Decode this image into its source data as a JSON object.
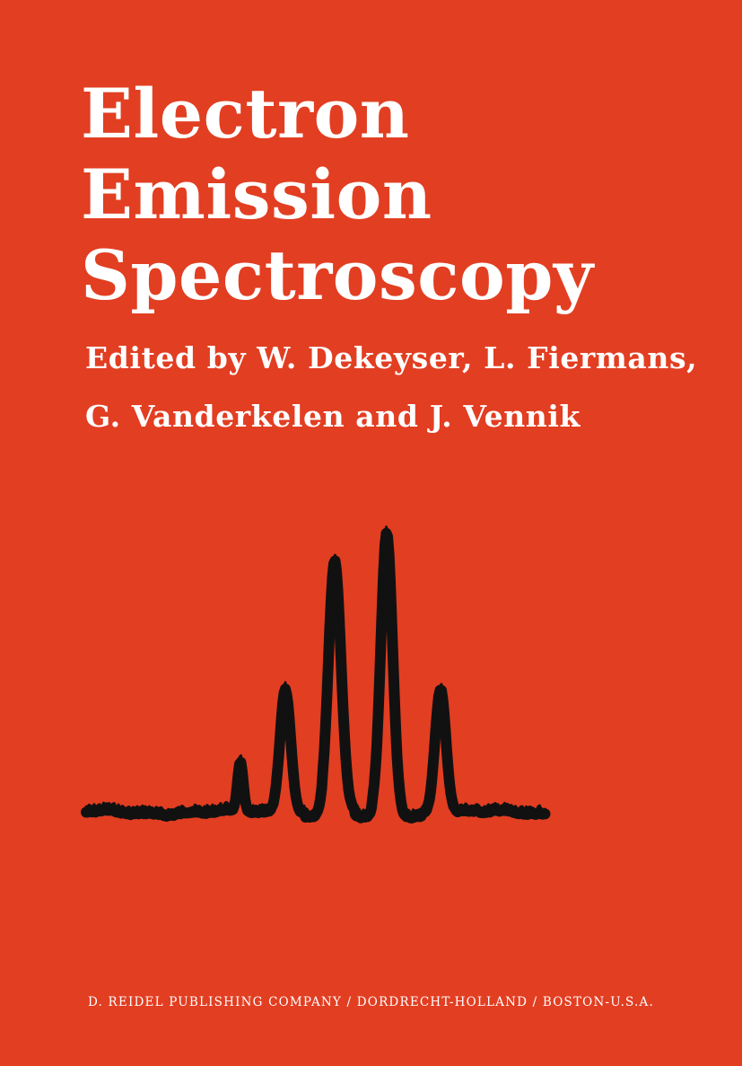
{
  "book": {
    "title_lines": [
      "Electron",
      "Emission",
      "Spectroscopy"
    ],
    "editor_lines": [
      "Edited by W. Dekeyser, L. Fiermans,",
      "G. Vanderkelen and J. Vennik"
    ],
    "publisher": "D. REIDEL PUBLISHING COMPANY / DORDRECHT-HOLLAND / BOSTON-U.S.A."
  },
  "colors": {
    "background": "#e23e22",
    "text": "#ffffff",
    "spectrum_trace": "#111111"
  },
  "illustration": {
    "icon": "spectrum-trace-illustration"
  }
}
